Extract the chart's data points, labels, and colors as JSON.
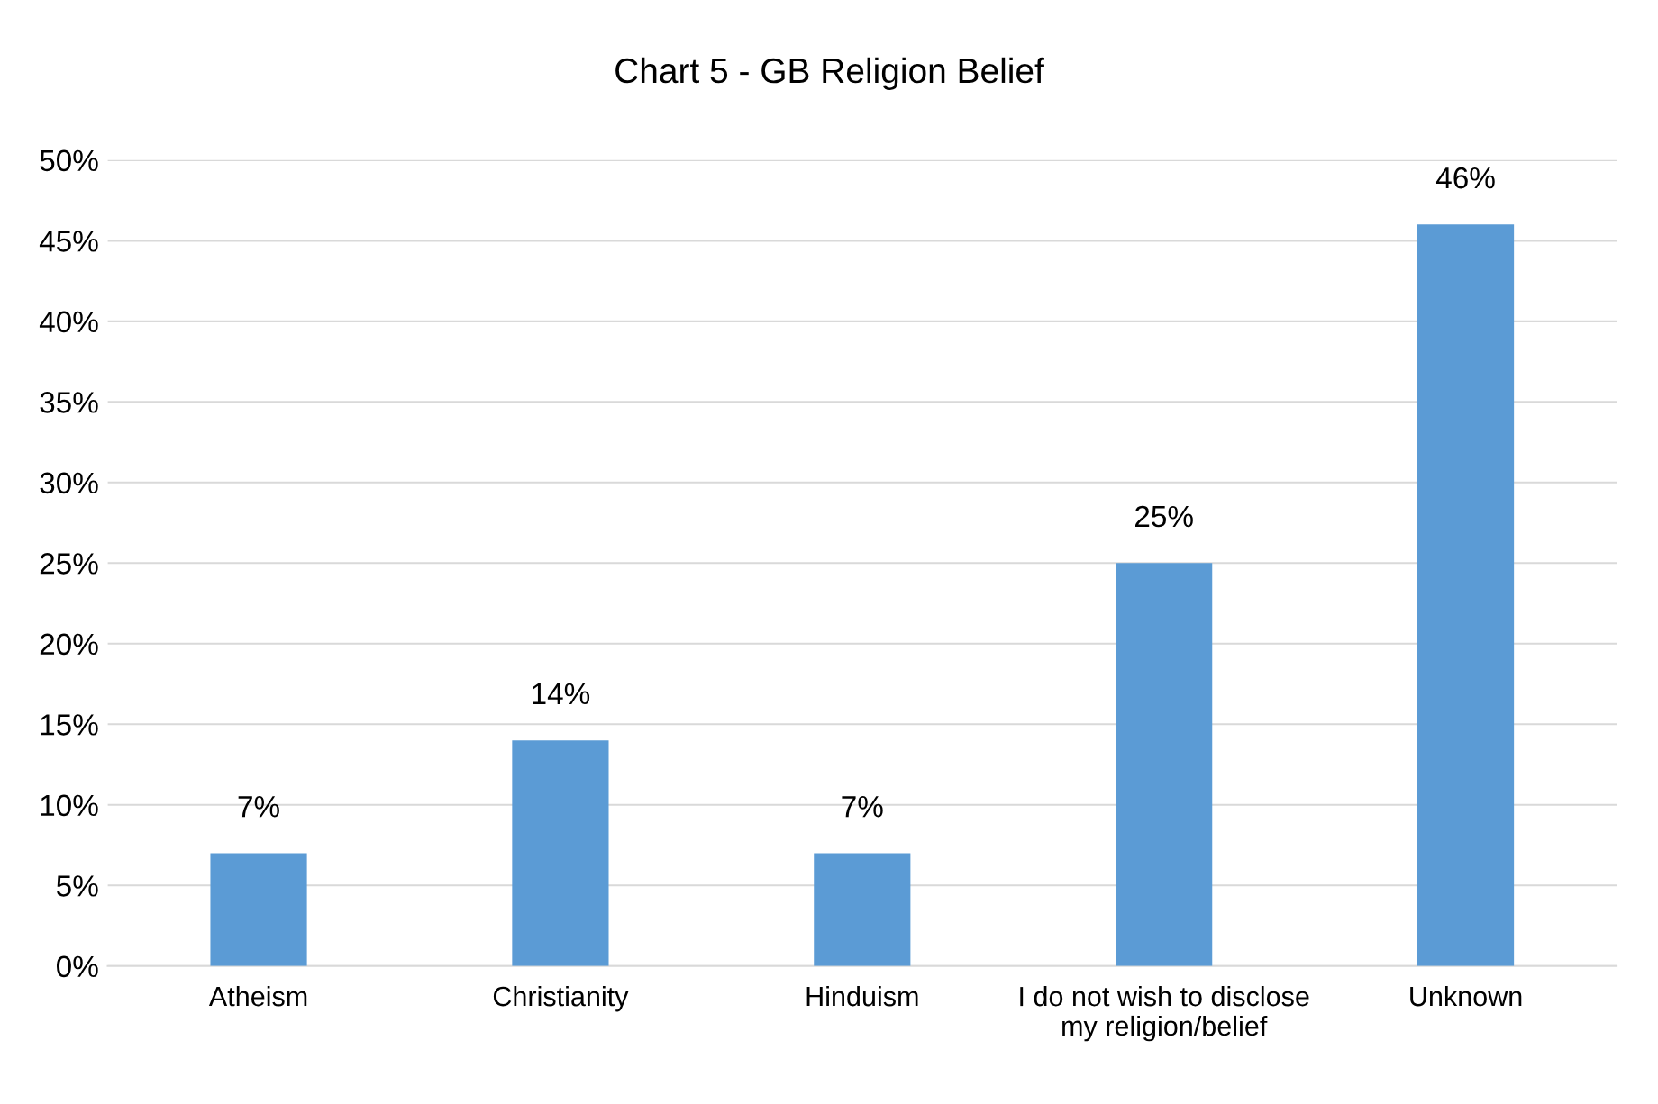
{
  "chart_data": {
    "type": "bar",
    "title": "Chart 5 - GB Religion Belief",
    "categories": [
      "Atheism",
      "Christianity",
      "Hinduism",
      "I do not wish to disclose\nmy religion/belief",
      "Unknown"
    ],
    "values": [
      7,
      14,
      7,
      25,
      46
    ],
    "value_labels": [
      "7%",
      "14%",
      "7%",
      "25%",
      "46%"
    ],
    "color": "#5b9bd5",
    "ylim": [
      0,
      50
    ],
    "yticks": [
      {
        "value": 0,
        "label": "0%"
      },
      {
        "value": 5,
        "label": "5%"
      },
      {
        "value": 10,
        "label": "10%"
      },
      {
        "value": 15,
        "label": "15%"
      },
      {
        "value": 20,
        "label": "20%"
      },
      {
        "value": 25,
        "label": "25%"
      },
      {
        "value": 30,
        "label": "30%"
      },
      {
        "value": 35,
        "label": "35%"
      },
      {
        "value": 40,
        "label": "40%"
      },
      {
        "value": 45,
        "label": "45%"
      },
      {
        "value": 50,
        "label": "50%"
      }
    ],
    "grid": "y"
  }
}
